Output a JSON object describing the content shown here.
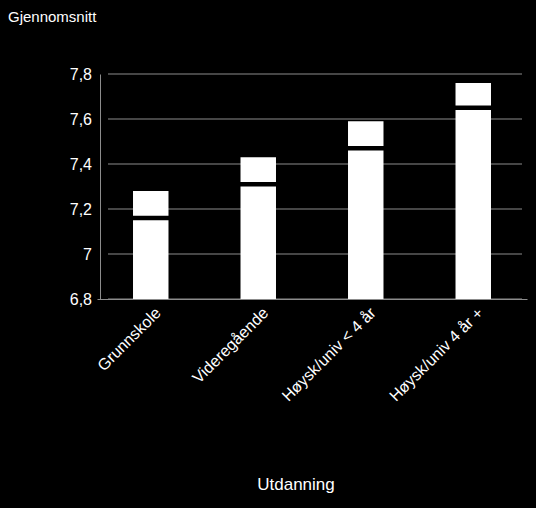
{
  "chart_data": {
    "type": "bar",
    "y_label": "Gjennomsnitt",
    "x_label": "Utdanning",
    "categories": [
      "Grunnskole",
      "Videregående",
      "Høysk/univ < 4 år",
      "Høysk/univ 4 år +"
    ],
    "values": [
      7.15,
      7.3,
      7.46,
      7.64
    ],
    "interval": [
      [
        7.17,
        7.28
      ],
      [
        7.32,
        7.43
      ],
      [
        7.48,
        7.59
      ],
      [
        7.66,
        7.76
      ]
    ],
    "color": "#ffffff",
    "ylim": [
      6.8,
      7.8
    ],
    "yticks": [
      {
        "value": 6.8,
        "label": "6,8"
      },
      7,
      {
        "value": 7.2,
        "label": "7,2"
      },
      {
        "value": 7.4,
        "label": "7,4"
      },
      {
        "value": 7.6,
        "label": "7,6"
      },
      {
        "value": 7.8,
        "label": "7,8"
      }
    ],
    "grid": true
  }
}
